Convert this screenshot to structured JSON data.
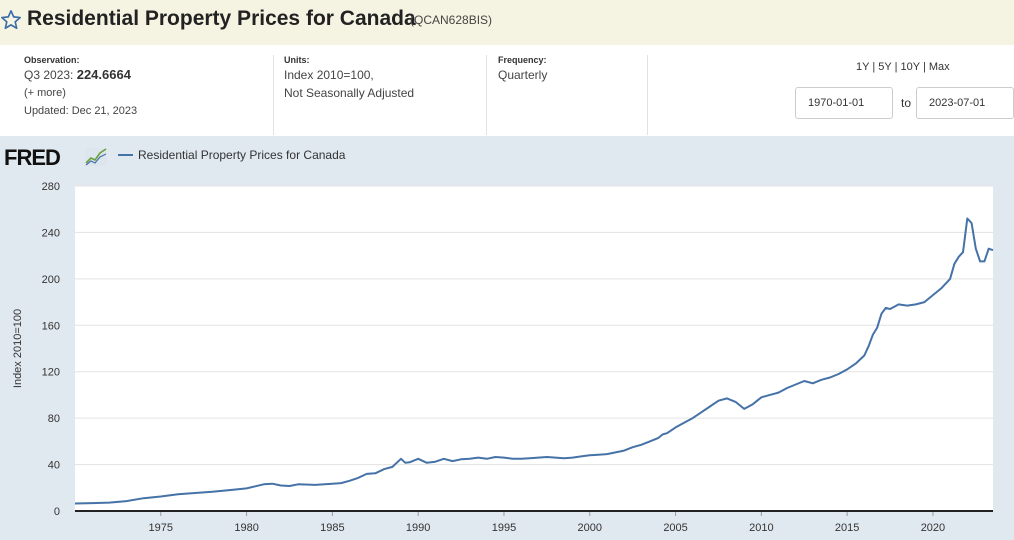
{
  "header": {
    "title": "Residential Property Prices for Canada",
    "series_id": "(QCAN628BIS)"
  },
  "meta": {
    "observation_label": "Observation:",
    "observation_period": "Q3 2023:",
    "observation_value": "224.6664",
    "more_link": "(+ more)",
    "updated": "Updated: Dec 21, 2023",
    "units_label": "Units:",
    "units_line1": "Index 2010=100,",
    "units_line2": "Not Seasonally Adjusted",
    "frequency_label": "Frequency:",
    "frequency_value": "Quarterly"
  },
  "controls": {
    "range_1y": "1Y",
    "range_5y": "5Y",
    "range_10y": "10Y",
    "range_max": "Max",
    "separator": "|",
    "start_date": "1970-01-01",
    "to_label": "to",
    "end_date": "2023-07-01"
  },
  "graph": {
    "logo_text": "FRED",
    "line_color": "#4572a7"
  },
  "chart_data": {
    "type": "line",
    "title": "",
    "legend": [
      "Residential Property Prices for Canada"
    ],
    "xlabel": "",
    "ylabel": "Index 2010=100",
    "xlim": [
      1970.0,
      2023.5
    ],
    "ylim": [
      0,
      280
    ],
    "x_ticks": [
      "1975",
      "1980",
      "1985",
      "1990",
      "1995",
      "2000",
      "2005",
      "2010",
      "2015",
      "2020"
    ],
    "y_ticks": [
      "0",
      "40",
      "80",
      "120",
      "160",
      "200",
      "240",
      "280"
    ],
    "series": [
      {
        "name": "Residential Property Prices for Canada",
        "x": [
          1970.0,
          1971.0,
          1972.0,
          1973.0,
          1974.0,
          1975.0,
          1976.0,
          1977.0,
          1978.0,
          1979.0,
          1980.0,
          1981.0,
          1981.5,
          1982.0,
          1982.5,
          1983.0,
          1984.0,
          1985.0,
          1985.5,
          1986.0,
          1986.5,
          1987.0,
          1987.5,
          1988.0,
          1988.5,
          1989.0,
          1989.25,
          1989.5,
          1990.0,
          1990.5,
          1991.0,
          1991.5,
          1992.0,
          1992.5,
          1993.0,
          1993.5,
          1994.0,
          1994.5,
          1995.0,
          1995.5,
          1996.0,
          1996.5,
          1997.0,
          1997.5,
          1998.0,
          1998.5,
          1999.0,
          1999.5,
          2000.0,
          2000.5,
          2001.0,
          2001.5,
          2002.0,
          2002.5,
          2003.0,
          2003.5,
          2004.0,
          2004.25,
          2004.5,
          2005.0,
          2005.5,
          2006.0,
          2006.5,
          2007.0,
          2007.5,
          2008.0,
          2008.5,
          2009.0,
          2009.5,
          2010.0,
          2010.5,
          2011.0,
          2011.5,
          2012.0,
          2012.5,
          2013.0,
          2013.5,
          2014.0,
          2014.5,
          2015.0,
          2015.5,
          2016.0,
          2016.25,
          2016.5,
          2016.75,
          2017.0,
          2017.25,
          2017.5,
          2017.75,
          2018.0,
          2018.5,
          2019.0,
          2019.5,
          2020.0,
          2020.5,
          2021.0,
          2021.25,
          2021.5,
          2021.75,
          2022.0,
          2022.25,
          2022.5,
          2022.75,
          2023.0,
          2023.25,
          2023.5
        ],
        "values": [
          6.5,
          6.8,
          7.2,
          8.5,
          11.0,
          12.5,
          14.5,
          15.5,
          16.5,
          18.0,
          19.5,
          23.0,
          23.5,
          22.0,
          21.5,
          23.0,
          22.5,
          23.5,
          24.0,
          26.0,
          28.5,
          32.0,
          32.5,
          36.0,
          38.0,
          45.0,
          41.5,
          42.0,
          45.0,
          41.5,
          42.5,
          45.0,
          43.0,
          44.5,
          45.0,
          46.0,
          45.0,
          46.5,
          46.0,
          45.0,
          45.0,
          45.5,
          46.0,
          46.5,
          46.0,
          45.5,
          46.0,
          47.0,
          48.0,
          48.5,
          49.0,
          50.5,
          52.0,
          55.0,
          57.0,
          60.0,
          63.0,
          66.0,
          67.0,
          72.0,
          76.0,
          80.0,
          85.0,
          90.0,
          95.0,
          97.0,
          94.0,
          88.0,
          92.0,
          98.0,
          100.0,
          102.0,
          106.0,
          109.0,
          112.0,
          110.0,
          113.0,
          115.0,
          118.0,
          122.0,
          127.0,
          134.0,
          142.0,
          152.0,
          158.0,
          170.0,
          175.0,
          174.0,
          176.0,
          178.0,
          177.0,
          178.0,
          180.0,
          186.0,
          192.0,
          200.0,
          213.0,
          219.0,
          223.0,
          252.0,
          248.0,
          226.0,
          215.0,
          215.0,
          226.0,
          224.7
        ]
      }
    ]
  }
}
